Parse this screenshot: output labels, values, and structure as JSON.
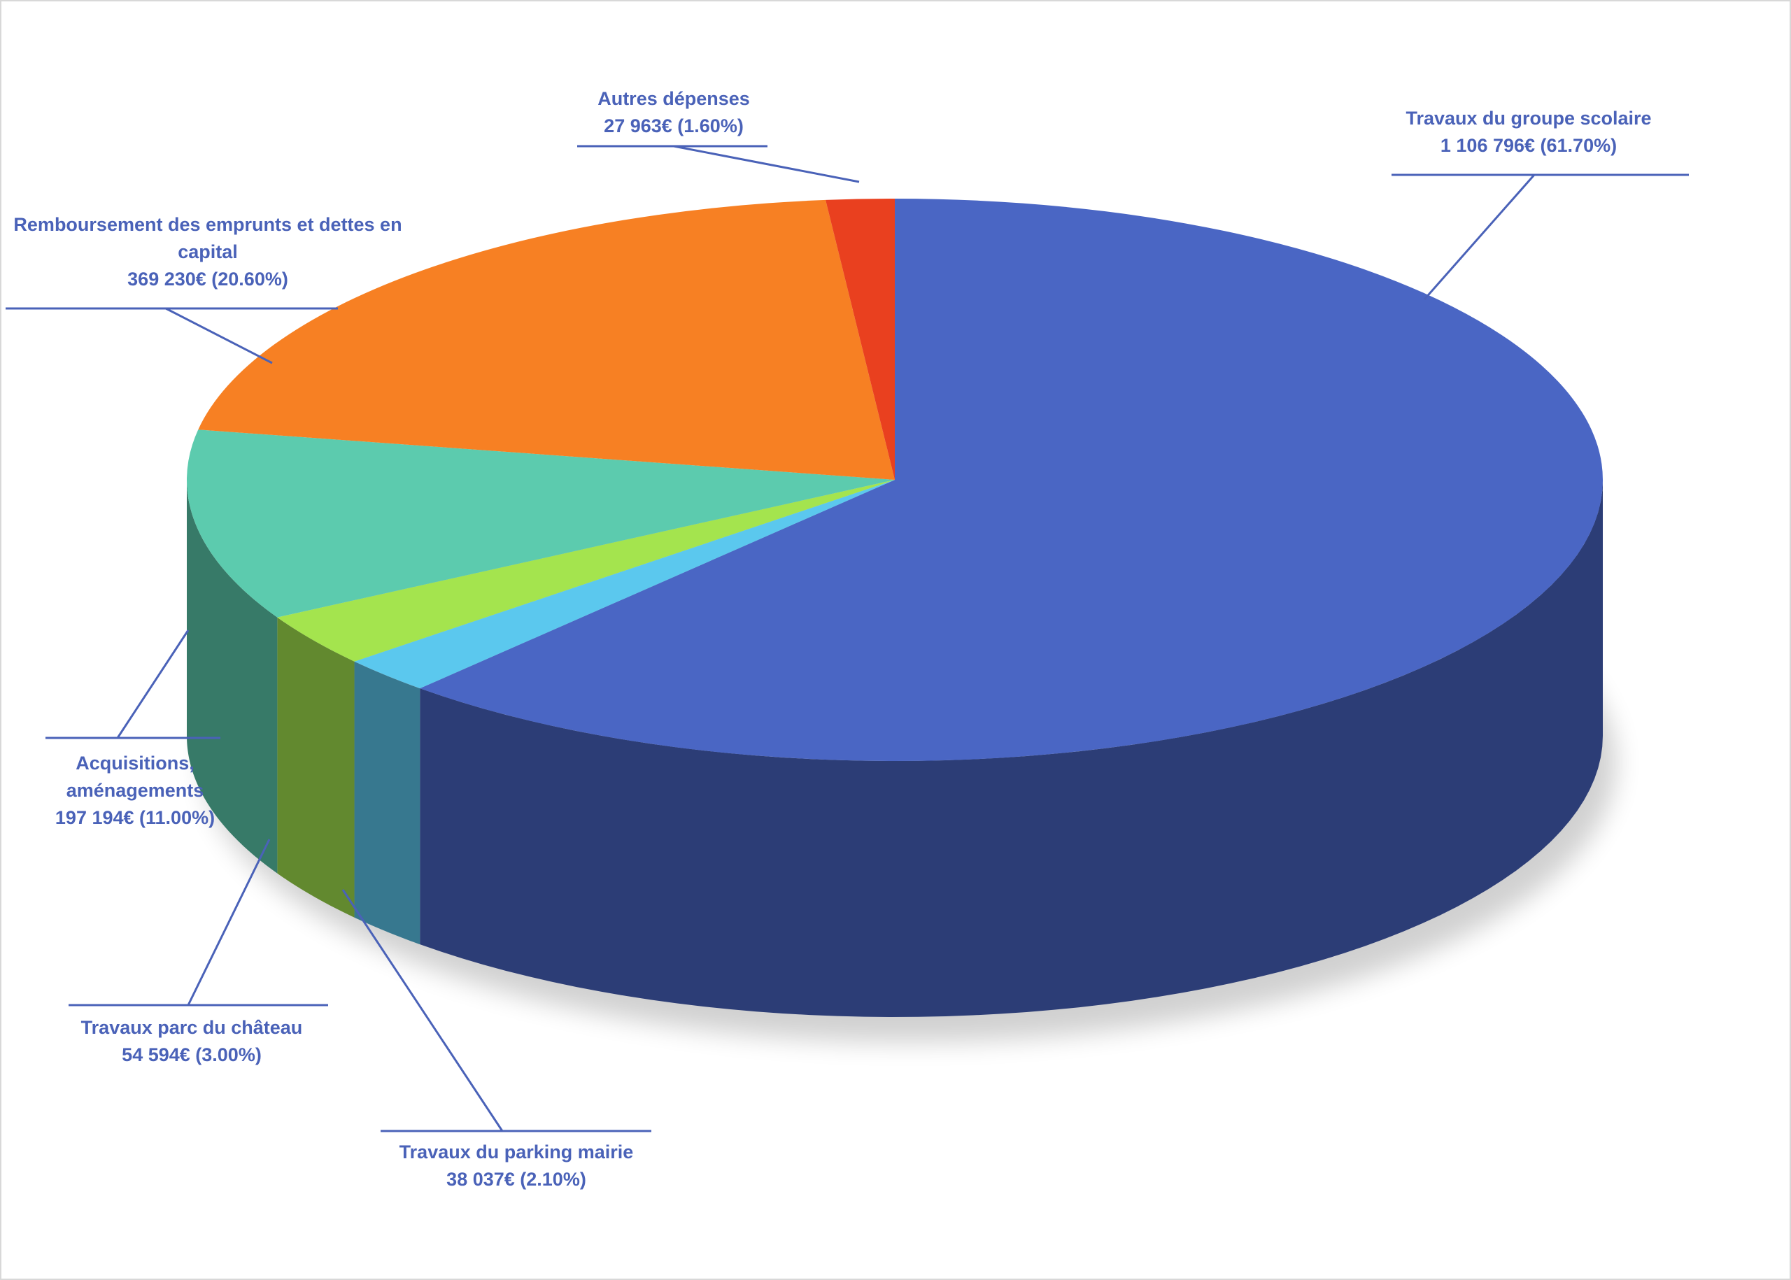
{
  "chart_data": {
    "type": "pie",
    "categories": [
      "Travaux du groupe scolaire",
      "Travaux du parking mairie",
      "Travaux parc du château",
      "Acquisitions, aménagements",
      "Remboursement des emprunts et dettes en capital",
      "Autres dépenses"
    ],
    "values": [
      1106796,
      38037,
      54594,
      197194,
      369230,
      27963
    ],
    "value_labels": [
      "1 106 796€ (61.70%)",
      "38 037€ (2.10%)",
      "54 594€ (3.00%)",
      "197 194€ (11.00%)",
      "369 230€ (20.60%)",
      "27 963€ (1.60%)"
    ],
    "colors": [
      "#4a66c4",
      "#5bc8ee",
      "#a4e44e",
      "#5ccbae",
      "#f78023",
      "#e9401f"
    ]
  }
}
